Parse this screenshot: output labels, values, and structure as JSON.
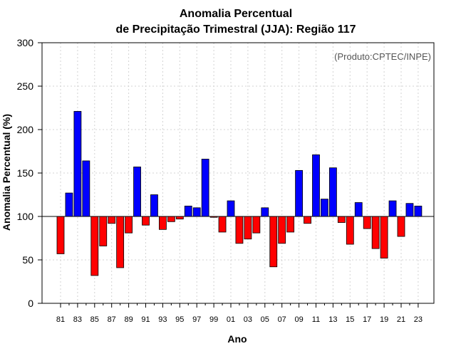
{
  "chart_data": {
    "type": "bar",
    "title": [
      "Anomalia Percentual",
      "de Precipitação Trimestral (JJA): Região 117"
    ],
    "xlabel": "Ano",
    "ylabel": "Anomalia Percentual (%)",
    "credit": "(Produto:CPTEC/INPE)",
    "ylim": [
      0,
      300
    ],
    "yticks": [
      0,
      50,
      100,
      150,
      200,
      250,
      300
    ],
    "baseline": 100,
    "grid": true,
    "colors": {
      "above": "#0000ff",
      "below": "#ff0000"
    },
    "categories": [
      "81",
      "82",
      "83",
      "84",
      "85",
      "86",
      "87",
      "88",
      "89",
      "90",
      "91",
      "92",
      "93",
      "94",
      "95",
      "96",
      "97",
      "98",
      "99",
      "00",
      "01",
      "02",
      "03",
      "04",
      "05",
      "06",
      "07",
      "08",
      "09",
      "10",
      "11",
      "12",
      "13",
      "14",
      "15",
      "16",
      "17",
      "18",
      "19",
      "20",
      "21",
      "22",
      "23"
    ],
    "xtick_labels": [
      "81",
      "83",
      "85",
      "87",
      "89",
      "91",
      "93",
      "95",
      "97",
      "99",
      "01",
      "03",
      "05",
      "07",
      "09",
      "11",
      "13",
      "15",
      "17",
      "19",
      "21",
      "23"
    ],
    "values": [
      57,
      127,
      221,
      164,
      32,
      66,
      92,
      41,
      81,
      157,
      90,
      125,
      85,
      94,
      97,
      112,
      110,
      166,
      99,
      82,
      118,
      69,
      74,
      81,
      110,
      42,
      69,
      82,
      153,
      92,
      171,
      120,
      156,
      93,
      68,
      116,
      86,
      63,
      52,
      118,
      77,
      115,
      112
    ]
  }
}
